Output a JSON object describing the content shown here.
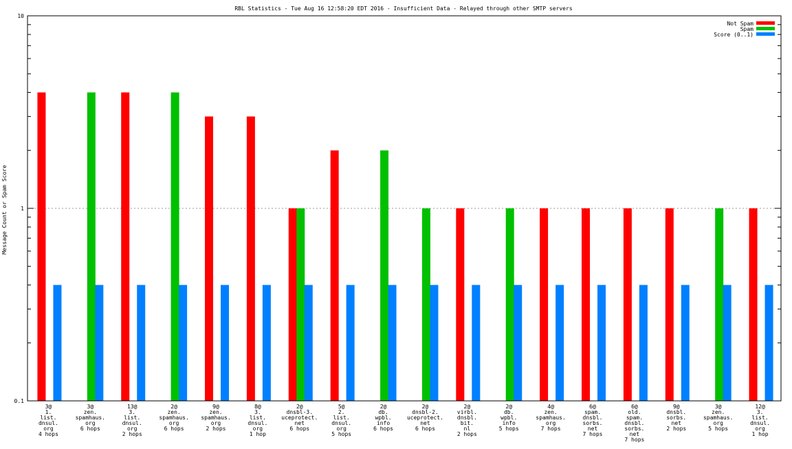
{
  "chart_data": {
    "type": "bar",
    "title": "RBL Statistics - Tue Aug 16 12:58:20 EDT 2016 - Insufficient Data - Relayed through other SMTP servers",
    "ylabel": "Message Count or Spam Score",
    "xlabel": "",
    "yscale": "log",
    "ylim": [
      0.1,
      10
    ],
    "yticks": [
      {
        "value": 0.1,
        "label": "0.1"
      },
      {
        "value": 1,
        "label": "1"
      },
      {
        "value": 10,
        "label": "10"
      }
    ],
    "legend_position": "top-right",
    "grid": "dotted horizontal at major ticks",
    "categories": [
      [
        "3@",
        "1.",
        "list.",
        "dnsul.",
        "org",
        "4 hops"
      ],
      [
        "3@",
        "zen.",
        "spamhaus.",
        "org",
        "6 hops"
      ],
      [
        "13@",
        "3.",
        "list.",
        "dnsul.",
        "org",
        "2 hops"
      ],
      [
        "2@",
        "zen.",
        "spamhaus.",
        "org",
        "6 hops"
      ],
      [
        "9@",
        "zen.",
        "spamhaus.",
        "org",
        "2 hops"
      ],
      [
        "8@",
        "3.",
        "list.",
        "dnsul.",
        "org",
        "1 hop"
      ],
      [
        "2@",
        "dnsbl-3.",
        "uceprotect.",
        "net",
        "6 hops"
      ],
      [
        "5@",
        "2.",
        "list.",
        "dnsul.",
        "org",
        "5 hops"
      ],
      [
        "2@",
        "db.",
        "wpbl.",
        "info",
        "6 hops"
      ],
      [
        "2@",
        "dnsbl-2.",
        "uceprotect.",
        "net",
        "6 hops"
      ],
      [
        "2@",
        "virbl.",
        "dnsbl.",
        "bit.",
        "nl",
        "2 hops"
      ],
      [
        "2@",
        "db.",
        "wpbl.",
        "info",
        "5 hops"
      ],
      [
        "4@",
        "zen.",
        "spamhaus.",
        "org",
        "7 hops"
      ],
      [
        "6@",
        "spam.",
        "dnsbl.",
        "sorbs.",
        "net",
        "7 hops"
      ],
      [
        "6@",
        "old.",
        "spam.",
        "dnsbl.",
        "sorbs.",
        "net",
        "7 hops"
      ],
      [
        "9@",
        "dnsbl.",
        "sorbs.",
        "net",
        "2 hops"
      ],
      [
        "3@",
        "zen.",
        "spamhaus.",
        "org",
        "5 hops"
      ],
      [
        "12@",
        "3.",
        "list.",
        "dnsul.",
        "org",
        "1 hop"
      ]
    ],
    "series": [
      {
        "name": "Not Spam",
        "color": "#ff0000",
        "values": [
          4,
          0,
          4,
          0,
          3,
          3,
          1,
          2,
          0,
          0,
          1,
          0,
          1,
          1,
          1,
          1,
          0,
          1
        ]
      },
      {
        "name": "Spam",
        "color": "#00c000",
        "values": [
          0,
          4,
          0,
          4,
          0,
          0,
          1,
          0,
          2,
          1,
          0,
          1,
          0,
          0,
          0,
          0,
          1,
          0
        ]
      },
      {
        "name": "Score (0..1)",
        "color": "#0080ff",
        "values": [
          0.4,
          0.4,
          0.4,
          0.4,
          0.4,
          0.4,
          0.4,
          0.4,
          0.4,
          0.4,
          0.4,
          0.4,
          0.4,
          0.4,
          0.4,
          0.4,
          0.4,
          0.4
        ]
      }
    ]
  }
}
